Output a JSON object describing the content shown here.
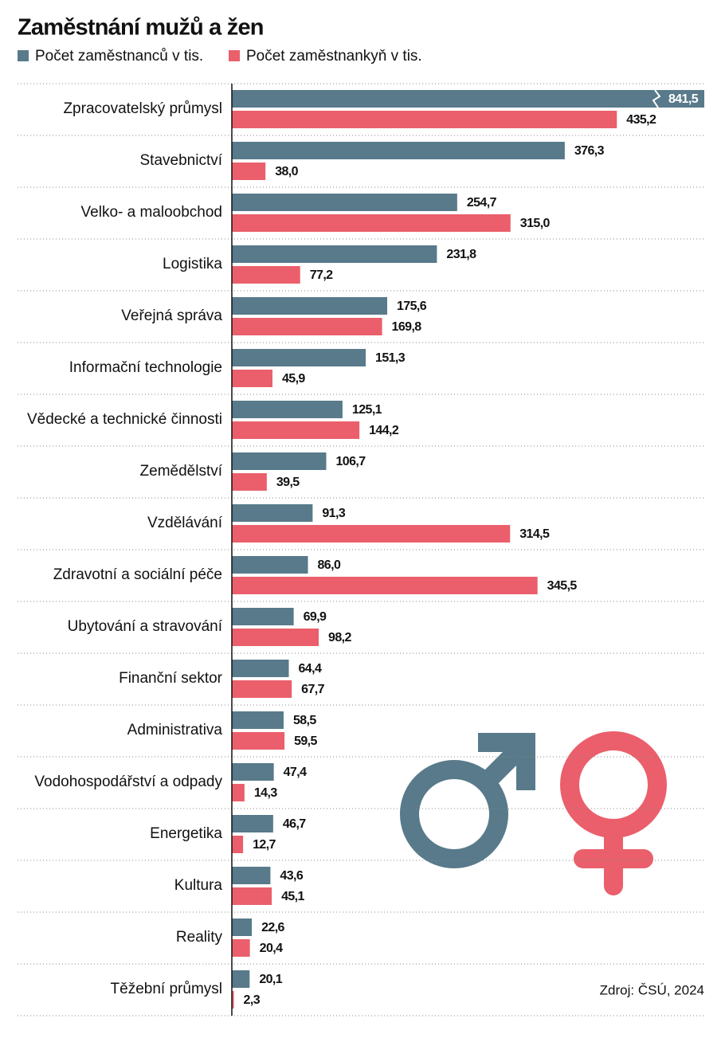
{
  "chart_data": {
    "type": "bar",
    "orientation": "horizontal",
    "title": "Zaměstnání mužů a žen",
    "source": "Zdroj: ČSÚ, 2024",
    "categories": [
      "Zpracovatelský průmysl",
      "Stavebnictví",
      "Velko- a maloobchod",
      "Logistika",
      "Veřejná správa",
      "Informační technologie",
      "Vědecké a technické činnosti",
      "Zemědělství",
      "Vzdělávání",
      "Zdravotní a sociální péče",
      "Ubytování a stravování",
      "Finanční sektor",
      "Administrativa",
      "Vodohospodářství a odpady",
      "Energetika",
      "Kultura",
      "Reality",
      "Těžební průmysl"
    ],
    "xlim": [
      0,
      534
    ],
    "series": [
      {
        "name": "Počet zaměstnanců v tis.",
        "color": "#587a8a",
        "values": [
          841.5,
          376.3,
          254.7,
          231.8,
          175.6,
          151.3,
          125.1,
          106.7,
          91.3,
          86.0,
          69.9,
          64.4,
          58.5,
          47.4,
          46.7,
          43.6,
          22.6,
          20.1
        ],
        "value_labels": [
          "841,5",
          "376,3",
          "254,7",
          "231,8",
          "175,6",
          "151,3",
          "125,1",
          "106,7",
          "91,3",
          "86,0",
          "69,9",
          "64,4",
          "58,5",
          "47,4",
          "46,7",
          "43,6",
          "22,6",
          "20,1"
        ]
      },
      {
        "name": "Počet zaměstnankyň v tis.",
        "color": "#ea5f6b",
        "values": [
          435.2,
          38.0,
          315.0,
          77.2,
          169.8,
          45.9,
          144.2,
          39.5,
          314.5,
          345.5,
          98.2,
          67.7,
          59.5,
          14.3,
          12.7,
          45.1,
          20.4,
          2.3
        ],
        "value_labels": [
          "435,2",
          "38,0",
          "315,0",
          "77,2",
          "169,8",
          "45,9",
          "144,2",
          "39,5",
          "314,5",
          "345,5",
          "98,2",
          "67,7",
          "59,5",
          "14,3",
          "12,7",
          "45,1",
          "20,4",
          "2,3"
        ]
      }
    ]
  }
}
